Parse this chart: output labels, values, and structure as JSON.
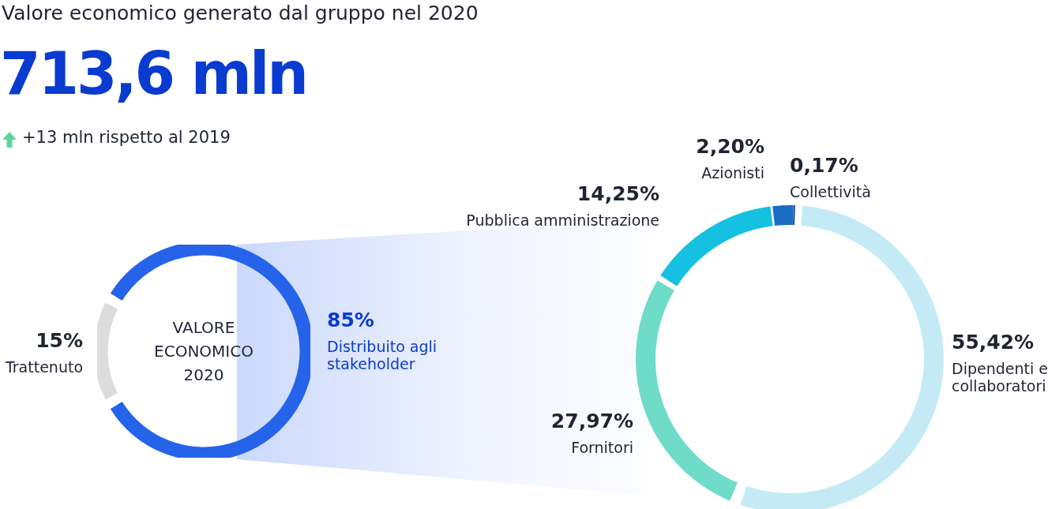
{
  "chart_data": [
    {
      "type": "other",
      "title": "Valore economico generato dal gruppo nel 2020",
      "subtitle": "713,6 mln",
      "annotations": [
        "+13 mln rispetto al 2019"
      ]
    },
    {
      "type": "donut",
      "categories": [
        "Trattenuto",
        "Distribuito agli stakeholder"
      ],
      "values": [
        15,
        85
      ],
      "colors": [
        "#dcdcdc",
        "#2563eb"
      ],
      "value_labels": [
        "15%",
        "85%"
      ],
      "annotations": [
        "VALORE ECONOMICO 2020"
      ]
    },
    {
      "type": "donut",
      "categories": [
        "Dipendenti e collaboratori",
        "Fornitori",
        "Pubblica amministrazione",
        "Azionisti",
        "Collettività"
      ],
      "values": [
        55.42,
        27.97,
        14.25,
        2.2,
        0.17
      ],
      "colors": [
        "#c4ebf5",
        "#6edcc8",
        "#16c0e0",
        "#1a6ec4",
        "#0a2f9c"
      ],
      "value_labels": [
        "55,42%",
        "27,97%",
        "14,25%",
        "2,20%",
        "0,17%"
      ]
    }
  ]
}
